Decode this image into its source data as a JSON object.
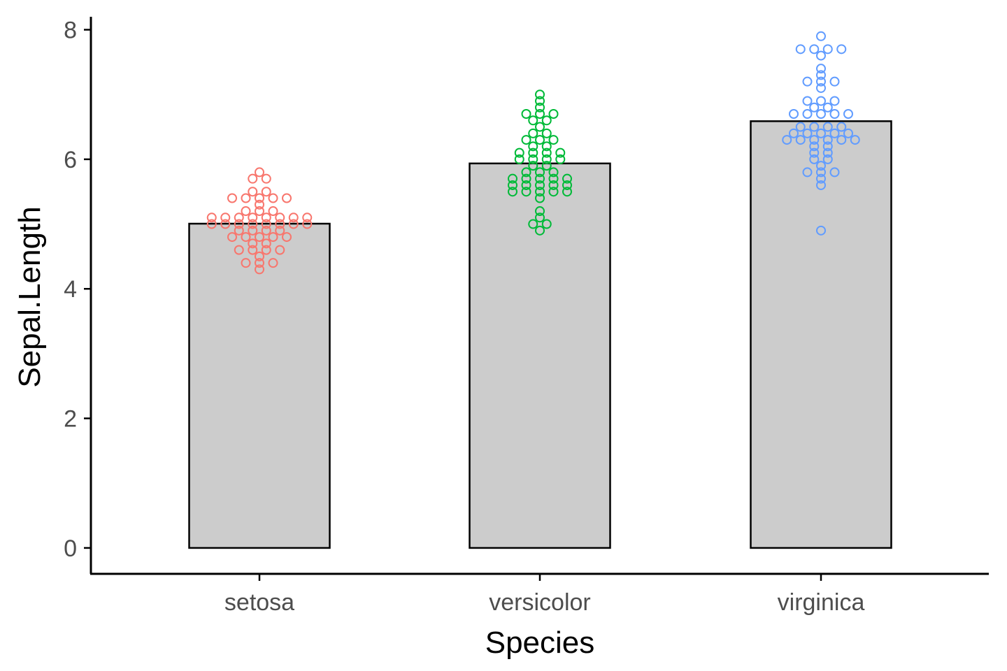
{
  "chart_data": {
    "type": "bar",
    "title": "",
    "xlabel": "Species",
    "ylabel": "Sepal.Length",
    "categories": [
      "setosa",
      "versicolor",
      "virginica"
    ],
    "values": [
      5.006,
      5.936,
      6.588
    ],
    "ylim": [
      -0.4,
      8.2
    ],
    "yticks": [
      0,
      2,
      4,
      6,
      8
    ],
    "grid": false,
    "legend": "none",
    "bar_fill": "#cccccc",
    "bar_stroke": "#000000",
    "point_colors": [
      "#f8766d",
      "#00ba38",
      "#619cff"
    ],
    "points": [
      [
        5.1,
        4.9,
        4.7,
        4.6,
        5.0,
        5.4,
        4.6,
        5.0,
        4.4,
        4.9,
        5.4,
        4.8,
        4.8,
        4.3,
        5.8,
        5.7,
        5.4,
        5.1,
        5.7,
        5.1,
        5.4,
        5.1,
        4.6,
        5.1,
        4.8,
        5.0,
        5.0,
        5.2,
        5.2,
        4.7,
        4.8,
        5.4,
        5.2,
        5.5,
        4.9,
        5.0,
        5.5,
        4.9,
        4.4,
        5.1,
        5.0,
        4.5,
        4.4,
        5.0,
        5.1,
        4.8,
        5.1,
        4.6,
        5.3,
        5.0
      ],
      [
        7.0,
        6.4,
        6.9,
        5.5,
        6.5,
        5.7,
        6.3,
        4.9,
        6.6,
        5.2,
        5.0,
        5.9,
        6.0,
        6.1,
        5.6,
        6.7,
        5.6,
        5.8,
        6.2,
        5.6,
        5.9,
        6.1,
        6.3,
        6.1,
        6.4,
        6.6,
        6.8,
        6.7,
        6.0,
        5.7,
        5.5,
        5.5,
        5.8,
        6.0,
        5.4,
        6.0,
        6.7,
        6.3,
        5.6,
        5.5,
        5.5,
        6.1,
        5.8,
        5.0,
        5.6,
        5.7,
        5.7,
        6.2,
        5.1,
        5.7
      ],
      [
        6.3,
        5.8,
        7.1,
        6.3,
        6.5,
        7.6,
        4.9,
        7.3,
        6.7,
        7.2,
        6.5,
        6.4,
        6.8,
        5.7,
        5.8,
        6.4,
        6.5,
        7.7,
        7.7,
        6.0,
        6.9,
        5.6,
        7.7,
        6.3,
        6.7,
        7.2,
        6.2,
        6.1,
        6.4,
        7.2,
        7.4,
        7.9,
        6.4,
        6.3,
        6.1,
        7.7,
        6.3,
        6.4,
        6.0,
        6.9,
        6.7,
        6.9,
        5.8,
        6.8,
        6.7,
        6.7,
        6.3,
        6.5,
        6.2,
        5.9
      ]
    ]
  }
}
